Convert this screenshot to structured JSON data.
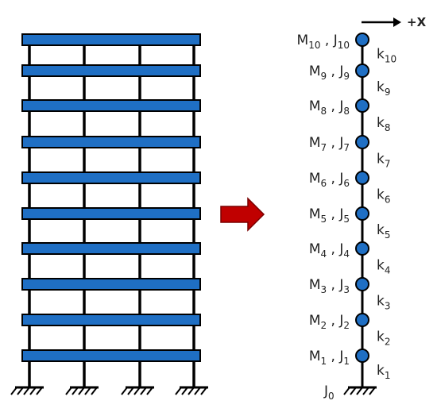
{
  "axis_label": "+X",
  "nodes": [
    {
      "m": "M",
      "m_sub": "10",
      "sep": " , ",
      "j": "J",
      "j_sub": "10"
    },
    {
      "m": "M",
      "m_sub": "9",
      "sep": " , ",
      "j": "J",
      "j_sub": "9"
    },
    {
      "m": "M",
      "m_sub": "8",
      "sep": " , ",
      "j": "J",
      "j_sub": "8"
    },
    {
      "m": "M",
      "m_sub": "7",
      "sep": " , ",
      "j": "J",
      "j_sub": "7"
    },
    {
      "m": "M",
      "m_sub": "6",
      "sep": " , ",
      "j": "J",
      "j_sub": "6"
    },
    {
      "m": "M",
      "m_sub": "5",
      "sep": " , ",
      "j": "J",
      "j_sub": "5"
    },
    {
      "m": "M",
      "m_sub": "4",
      "sep": " , ",
      "j": "J",
      "j_sub": "4"
    },
    {
      "m": "M",
      "m_sub": "3",
      "sep": " , ",
      "j": "J",
      "j_sub": "3"
    },
    {
      "m": "M",
      "m_sub": "2",
      "sep": " , ",
      "j": "J",
      "j_sub": "2"
    },
    {
      "m": "M",
      "m_sub": "1",
      "sep": " , ",
      "j": "J",
      "j_sub": "1"
    }
  ],
  "springs": [
    {
      "k": "k",
      "sub": "10"
    },
    {
      "k": "k",
      "sub": "9"
    },
    {
      "k": "k",
      "sub": "8"
    },
    {
      "k": "k",
      "sub": "7"
    },
    {
      "k": "k",
      "sub": "6"
    },
    {
      "k": "k",
      "sub": "5"
    },
    {
      "k": "k",
      "sub": "4"
    },
    {
      "k": "k",
      "sub": "3"
    },
    {
      "k": "k",
      "sub": "2"
    },
    {
      "k": "k",
      "sub": "1"
    }
  ],
  "base": {
    "j": "J",
    "j_sub": "0"
  }
}
